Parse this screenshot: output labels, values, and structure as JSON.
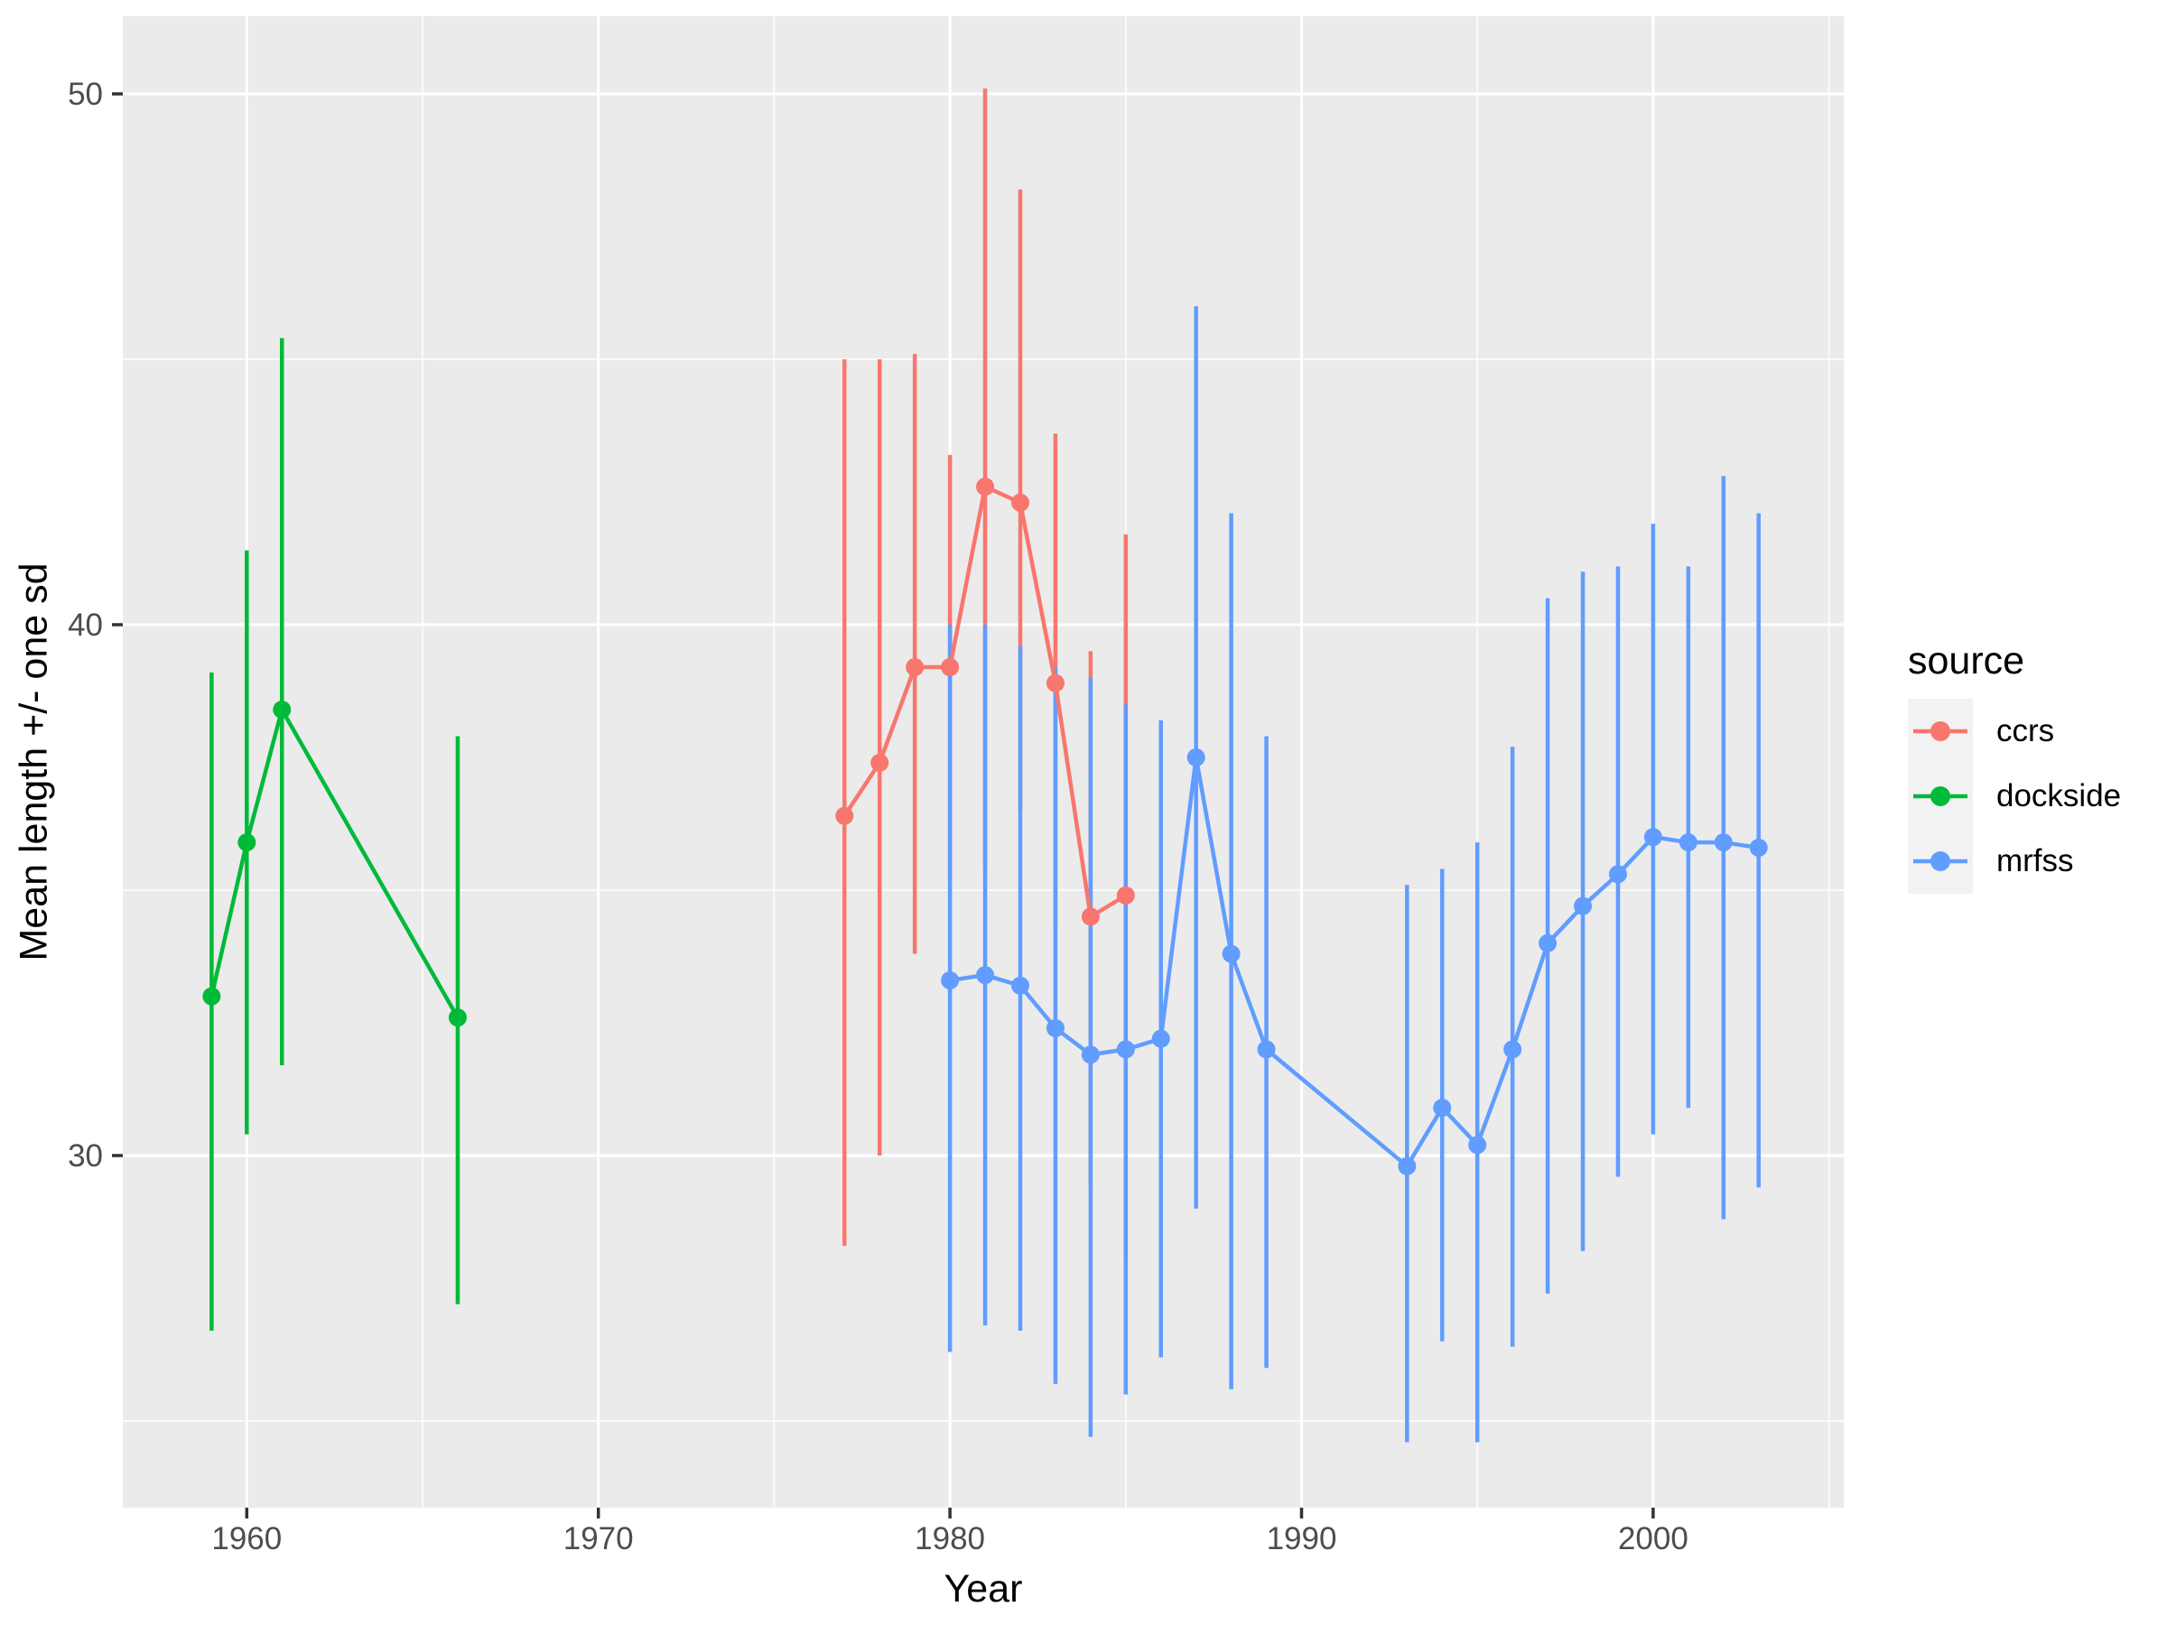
{
  "chart_data": {
    "type": "line",
    "title": "",
    "xlabel": "Year",
    "ylabel": "Mean length +/- one sd",
    "x_ticks": [
      1960,
      1970,
      1980,
      1990,
      2000
    ],
    "x_minor_ticks": [
      1965,
      1975,
      1985,
      1995,
      2005
    ],
    "y_ticks": [
      30,
      40,
      50
    ],
    "y_minor_ticks": [
      25,
      35,
      45
    ],
    "xlim": [
      1956.5,
      2005.4
    ],
    "ylim": [
      23.4,
      51.5
    ],
    "grid": true,
    "legend_position": "right",
    "error_bar_meaning": "mean +/- one sd",
    "series": [
      {
        "name": "ccrs",
        "color": "#F8766D",
        "points": [
          {
            "year": 1977,
            "mean": 36.4,
            "lower": 28.3,
            "upper": 45.0
          },
          {
            "year": 1978,
            "mean": 37.4,
            "lower": 30.0,
            "upper": 45.0
          },
          {
            "year": 1979,
            "mean": 39.2,
            "lower": 33.8,
            "upper": 45.1
          },
          {
            "year": 1980,
            "mean": 39.2,
            "lower": 35.2,
            "upper": 43.2
          },
          {
            "year": 1981,
            "mean": 42.6,
            "lower": 35.4,
            "upper": 50.1
          },
          {
            "year": 1982,
            "mean": 42.3,
            "lower": 36.5,
            "upper": 48.2
          },
          {
            "year": 1983,
            "mean": 38.9,
            "lower": 34.3,
            "upper": 43.6
          },
          {
            "year": 1984,
            "mean": 34.5,
            "lower": 29.4,
            "upper": 39.5
          },
          {
            "year": 1985,
            "mean": 34.9,
            "lower": 28.0,
            "upper": 41.7
          }
        ]
      },
      {
        "name": "dockside",
        "color": "#00BA38",
        "points": [
          {
            "year": 1959,
            "mean": 33.0,
            "lower": 26.7,
            "upper": 39.1
          },
          {
            "year": 1960,
            "mean": 35.9,
            "lower": 30.4,
            "upper": 41.4
          },
          {
            "year": 1961,
            "mean": 38.4,
            "lower": 31.7,
            "upper": 45.4
          },
          {
            "year": 1966,
            "mean": 32.6,
            "lower": 27.2,
            "upper": 37.9
          }
        ]
      },
      {
        "name": "mrfss",
        "color": "#619CFF",
        "points": [
          {
            "year": 1980,
            "mean": 33.3,
            "lower": 26.3,
            "upper": 40.0
          },
          {
            "year": 1981,
            "mean": 33.4,
            "lower": 26.8,
            "upper": 40.0
          },
          {
            "year": 1982,
            "mean": 33.2,
            "lower": 26.7,
            "upper": 39.6
          },
          {
            "year": 1983,
            "mean": 32.4,
            "lower": 25.7,
            "upper": 39.2
          },
          {
            "year": 1984,
            "mean": 31.9,
            "lower": 24.7,
            "upper": 39.0
          },
          {
            "year": 1985,
            "mean": 32.0,
            "lower": 25.5,
            "upper": 38.5
          },
          {
            "year": 1986,
            "mean": 32.2,
            "lower": 26.2,
            "upper": 38.2
          },
          {
            "year": 1987,
            "mean": 37.5,
            "lower": 29.0,
            "upper": 46.0
          },
          {
            "year": 1988,
            "mean": 33.8,
            "lower": 25.6,
            "upper": 42.1
          },
          {
            "year": 1989,
            "mean": 32.0,
            "lower": 26.0,
            "upper": 37.9
          },
          {
            "year": 1993,
            "mean": 29.8,
            "lower": 24.6,
            "upper": 35.1
          },
          {
            "year": 1994,
            "mean": 30.9,
            "lower": 26.5,
            "upper": 35.4
          },
          {
            "year": 1995,
            "mean": 30.2,
            "lower": 24.6,
            "upper": 35.9
          },
          {
            "year": 1996,
            "mean": 32.0,
            "lower": 26.4,
            "upper": 37.7
          },
          {
            "year": 1997,
            "mean": 34.0,
            "lower": 27.4,
            "upper": 40.5
          },
          {
            "year": 1998,
            "mean": 34.7,
            "lower": 28.2,
            "upper": 41.0
          },
          {
            "year": 1999,
            "mean": 35.3,
            "lower": 29.6,
            "upper": 41.1
          },
          {
            "year": 2000,
            "mean": 36.0,
            "lower": 30.4,
            "upper": 41.9
          },
          {
            "year": 2001,
            "mean": 35.9,
            "lower": 30.9,
            "upper": 41.1
          },
          {
            "year": 2002,
            "mean": 35.9,
            "lower": 28.8,
            "upper": 42.8
          },
          {
            "year": 2003,
            "mean": 35.8,
            "lower": 29.4,
            "upper": 42.1
          }
        ]
      }
    ]
  },
  "legend": {
    "title": "source",
    "items": [
      {
        "label": "ccrs",
        "color": "#F8766D"
      },
      {
        "label": "dockside",
        "color": "#00BA38"
      },
      {
        "label": "mrfss",
        "color": "#619CFF"
      }
    ]
  },
  "style": {
    "panel_bg": "#EBEBEB",
    "grid_color": "#FFFFFF",
    "tick_label_color": "#4D4D4D",
    "tick_mark_color": "#333333",
    "axis_title_color": "#000000",
    "legend_key_bg": "#F2F2F2",
    "background": "#FFFFFF"
  }
}
